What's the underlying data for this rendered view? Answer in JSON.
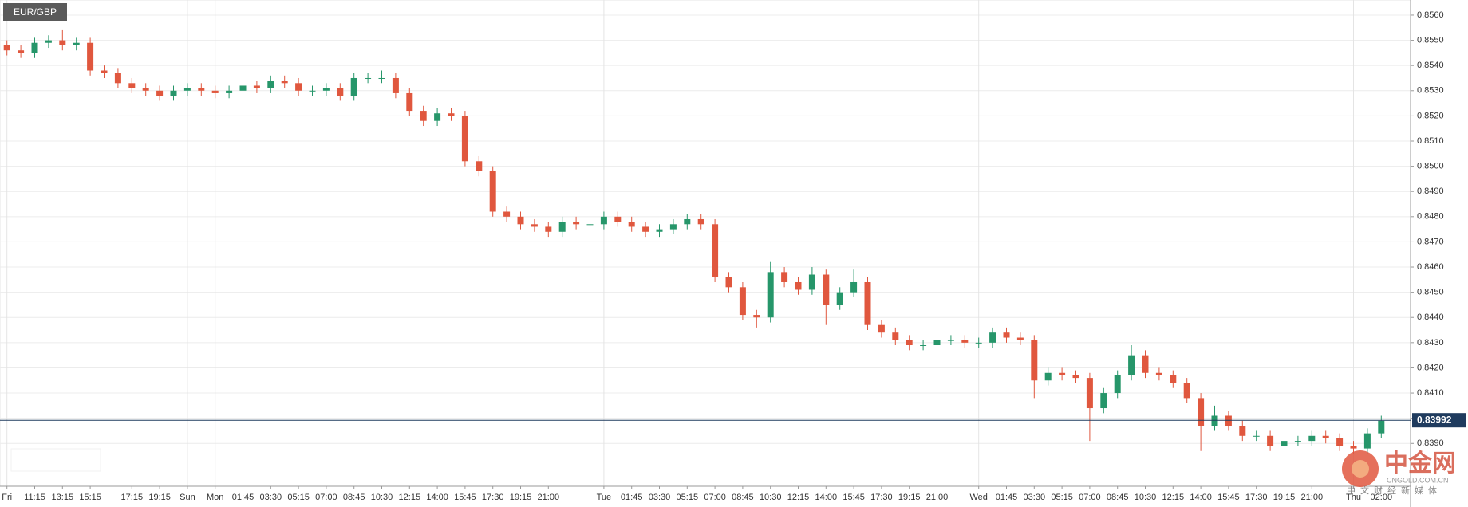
{
  "chart_data": {
    "type": "candlestick",
    "title": "EUR/GBP",
    "categories": [
      "Fri",
      null,
      "11:15",
      null,
      "13:15",
      null,
      "15:15",
      null,
      null,
      "17:15",
      null,
      "19:15",
      null,
      "Sun",
      null,
      "Mon",
      null,
      "01:45",
      null,
      "03:30",
      null,
      "05:15",
      null,
      "07:00",
      null,
      "08:45",
      null,
      "10:30",
      null,
      "12:15",
      null,
      "14:00",
      null,
      "15:45",
      null,
      "17:30",
      null,
      "19:15",
      null,
      "21:00",
      null,
      null,
      null,
      "Tue",
      null,
      "01:45",
      null,
      "03:30",
      null,
      "05:15",
      null,
      "07:00",
      null,
      "08:45",
      null,
      "10:30",
      null,
      "12:15",
      null,
      "14:00",
      null,
      "15:45",
      null,
      "17:30",
      null,
      "19:15",
      null,
      "21:00",
      null,
      null,
      "Wed",
      null,
      "01:45",
      null,
      "03:30",
      null,
      "05:15",
      null,
      "07:00",
      null,
      "08:45",
      null,
      "10:30",
      null,
      "12:15",
      null,
      "14:00",
      null,
      "15:45",
      null,
      "17:30",
      null,
      "19:15",
      null,
      "21:00",
      null,
      null,
      "Thu",
      null,
      "02:00"
    ],
    "open": [
      0.8548,
      0.8546,
      0.8545,
      0.8549,
      0.855,
      0.8548,
      0.8549,
      0.8538,
      0.8537,
      0.8533,
      0.8531,
      0.853,
      0.8528,
      0.853,
      0.8531,
      0.853,
      0.8529,
      0.853,
      0.8532,
      0.8531,
      0.8534,
      0.8533,
      0.853,
      0.853,
      0.8531,
      0.8528,
      0.8535,
      0.8535,
      0.8535,
      0.8529,
      0.8522,
      0.8518,
      0.8521,
      0.852,
      0.8502,
      0.8498,
      0.8482,
      0.848,
      0.8477,
      0.8476,
      0.8474,
      0.8478,
      0.8477,
      0.8477,
      0.848,
      0.8478,
      0.8476,
      0.8474,
      0.8475,
      0.8477,
      0.8479,
      0.8477,
      0.8456,
      0.8452,
      0.8441,
      0.844,
      0.8458,
      0.8454,
      0.8451,
      0.8457,
      0.8445,
      0.845,
      0.8454,
      0.8437,
      0.8434,
      0.8431,
      0.8429,
      0.8429,
      0.8431,
      0.8431,
      0.843,
      0.843,
      0.8434,
      0.8432,
      0.8431,
      0.8415,
      0.8418,
      0.8417,
      0.8416,
      0.8404,
      0.841,
      0.8417,
      0.8425,
      0.8418,
      0.8417,
      0.8414,
      0.8408,
      0.8397,
      0.8401,
      0.8397,
      0.8393,
      0.8393,
      0.8389,
      0.8391,
      0.8391,
      0.8393,
      0.8392,
      0.8389,
      0.8388,
      0.8394
    ],
    "high": [
      0.855,
      0.8548,
      0.8551,
      0.8552,
      0.8554,
      0.8551,
      0.8551,
      0.854,
      0.8539,
      0.8535,
      0.8533,
      0.8532,
      0.8532,
      0.8533,
      0.8533,
      0.8532,
      0.8532,
      0.8534,
      0.8534,
      0.8536,
      0.8536,
      0.8535,
      0.8532,
      0.8533,
      0.8533,
      0.8537,
      0.8537,
      0.8538,
      0.8537,
      0.8531,
      0.8524,
      0.8523,
      0.8523,
      0.8522,
      0.8504,
      0.85,
      0.8484,
      0.8482,
      0.8479,
      0.8478,
      0.848,
      0.848,
      0.8479,
      0.8482,
      0.8482,
      0.848,
      0.8478,
      0.8477,
      0.8479,
      0.8481,
      0.8481,
      0.8479,
      0.8458,
      0.8454,
      0.8443,
      0.8462,
      0.846,
      0.8456,
      0.846,
      0.8459,
      0.8452,
      0.8459,
      0.8456,
      0.8439,
      0.8436,
      0.8433,
      0.8431,
      0.8433,
      0.8433,
      0.8433,
      0.8432,
      0.8436,
      0.8436,
      0.8434,
      0.8433,
      0.842,
      0.842,
      0.8419,
      0.8418,
      0.8412,
      0.8419,
      0.8429,
      0.8427,
      0.842,
      0.8419,
      0.8416,
      0.841,
      0.8405,
      0.8403,
      0.8399,
      0.8395,
      0.8395,
      0.8393,
      0.8393,
      0.8395,
      0.8395,
      0.8394,
      0.8391,
      0.8396,
      0.8401
    ],
    "low": [
      0.8544,
      0.8543,
      0.8543,
      0.8547,
      0.8546,
      0.8546,
      0.8536,
      0.8535,
      0.8531,
      0.8529,
      0.8528,
      0.8526,
      0.8526,
      0.8528,
      0.8528,
      0.8527,
      0.8527,
      0.8528,
      0.8529,
      0.8529,
      0.8531,
      0.8528,
      0.8528,
      0.8528,
      0.8526,
      0.8526,
      0.8533,
      0.8533,
      0.8527,
      0.852,
      0.8516,
      0.8516,
      0.8518,
      0.85,
      0.8496,
      0.848,
      0.8478,
      0.8475,
      0.8474,
      0.8472,
      0.8472,
      0.8475,
      0.8475,
      0.8475,
      0.8476,
      0.8474,
      0.8472,
      0.8472,
      0.8473,
      0.8475,
      0.8475,
      0.8454,
      0.845,
      0.8439,
      0.8436,
      0.8438,
      0.8452,
      0.8449,
      0.8449,
      0.8437,
      0.8443,
      0.8448,
      0.8435,
      0.8432,
      0.8429,
      0.8427,
      0.8427,
      0.8427,
      0.8429,
      0.8428,
      0.8428,
      0.8428,
      0.843,
      0.8429,
      0.8408,
      0.8413,
      0.8415,
      0.8414,
      0.8391,
      0.8402,
      0.8408,
      0.8415,
      0.8416,
      0.8415,
      0.8412,
      0.8406,
      0.8387,
      0.8395,
      0.8395,
      0.8391,
      0.8391,
      0.8387,
      0.8387,
      0.8389,
      0.8389,
      0.839,
      0.8387,
      0.8386,
      0.8386,
      0.8392
    ],
    "close": [
      0.8546,
      0.8545,
      0.8549,
      0.855,
      0.8548,
      0.8549,
      0.8538,
      0.8537,
      0.8533,
      0.8531,
      0.853,
      0.8528,
      0.853,
      0.8531,
      0.853,
      0.8529,
      0.853,
      0.8532,
      0.8531,
      0.8534,
      0.8533,
      0.853,
      0.853,
      0.8531,
      0.8528,
      0.8535,
      0.8535,
      0.8535,
      0.8529,
      0.8522,
      0.8518,
      0.8521,
      0.852,
      0.8502,
      0.8498,
      0.8482,
      0.848,
      0.8477,
      0.8476,
      0.8474,
      0.8478,
      0.8477,
      0.8477,
      0.848,
      0.8478,
      0.8476,
      0.8474,
      0.8475,
      0.8477,
      0.8479,
      0.8477,
      0.8456,
      0.8452,
      0.8441,
      0.844,
      0.8458,
      0.8454,
      0.8451,
      0.8457,
      0.8445,
      0.845,
      0.8454,
      0.8437,
      0.8434,
      0.8431,
      0.8429,
      0.8429,
      0.8431,
      0.8431,
      0.843,
      0.843,
      0.8434,
      0.8432,
      0.8431,
      0.8415,
      0.8418,
      0.8417,
      0.8416,
      0.8404,
      0.841,
      0.8417,
      0.8425,
      0.8418,
      0.8417,
      0.8414,
      0.8408,
      0.8397,
      0.8401,
      0.8397,
      0.8393,
      0.8393,
      0.8389,
      0.8391,
      0.8391,
      0.8393,
      0.8392,
      0.8389,
      0.8388,
      0.8394,
      0.8399
    ],
    "up_color": "#26966a",
    "down_color": "#e0573e",
    "ylim": [
      0.8373,
      0.8566
    ],
    "yticks": [
      {
        "value": 0.839,
        "label": "0.8390"
      },
      {
        "value": 0.84,
        "label": "0.8400"
      },
      {
        "value": 0.841,
        "label": "0.8410"
      },
      {
        "value": 0.842,
        "label": "0.8420"
      },
      {
        "value": 0.843,
        "label": "0.8430"
      },
      {
        "value": 0.844,
        "label": "0.8440"
      },
      {
        "value": 0.845,
        "label": "0.8450"
      },
      {
        "value": 0.846,
        "label": "0.8460"
      },
      {
        "value": 0.847,
        "label": "0.8470"
      },
      {
        "value": 0.848,
        "label": "0.8480"
      },
      {
        "value": 0.849,
        "label": "0.8490"
      },
      {
        "value": 0.85,
        "label": "0.8500"
      },
      {
        "value": 0.851,
        "label": "0.8510"
      },
      {
        "value": 0.852,
        "label": "0.8520"
      },
      {
        "value": 0.853,
        "label": "0.8530"
      },
      {
        "value": 0.854,
        "label": "0.8540"
      },
      {
        "value": 0.855,
        "label": "0.8550"
      },
      {
        "value": 0.856,
        "label": "0.8560"
      }
    ],
    "grid": true,
    "last_price": 0.83992,
    "last_price_color": "#1f3b5e"
  },
  "watermark": {
    "name": "中金网",
    "domain": "CNGOLD.COM.CN",
    "slogan": "中文财经新媒体"
  }
}
